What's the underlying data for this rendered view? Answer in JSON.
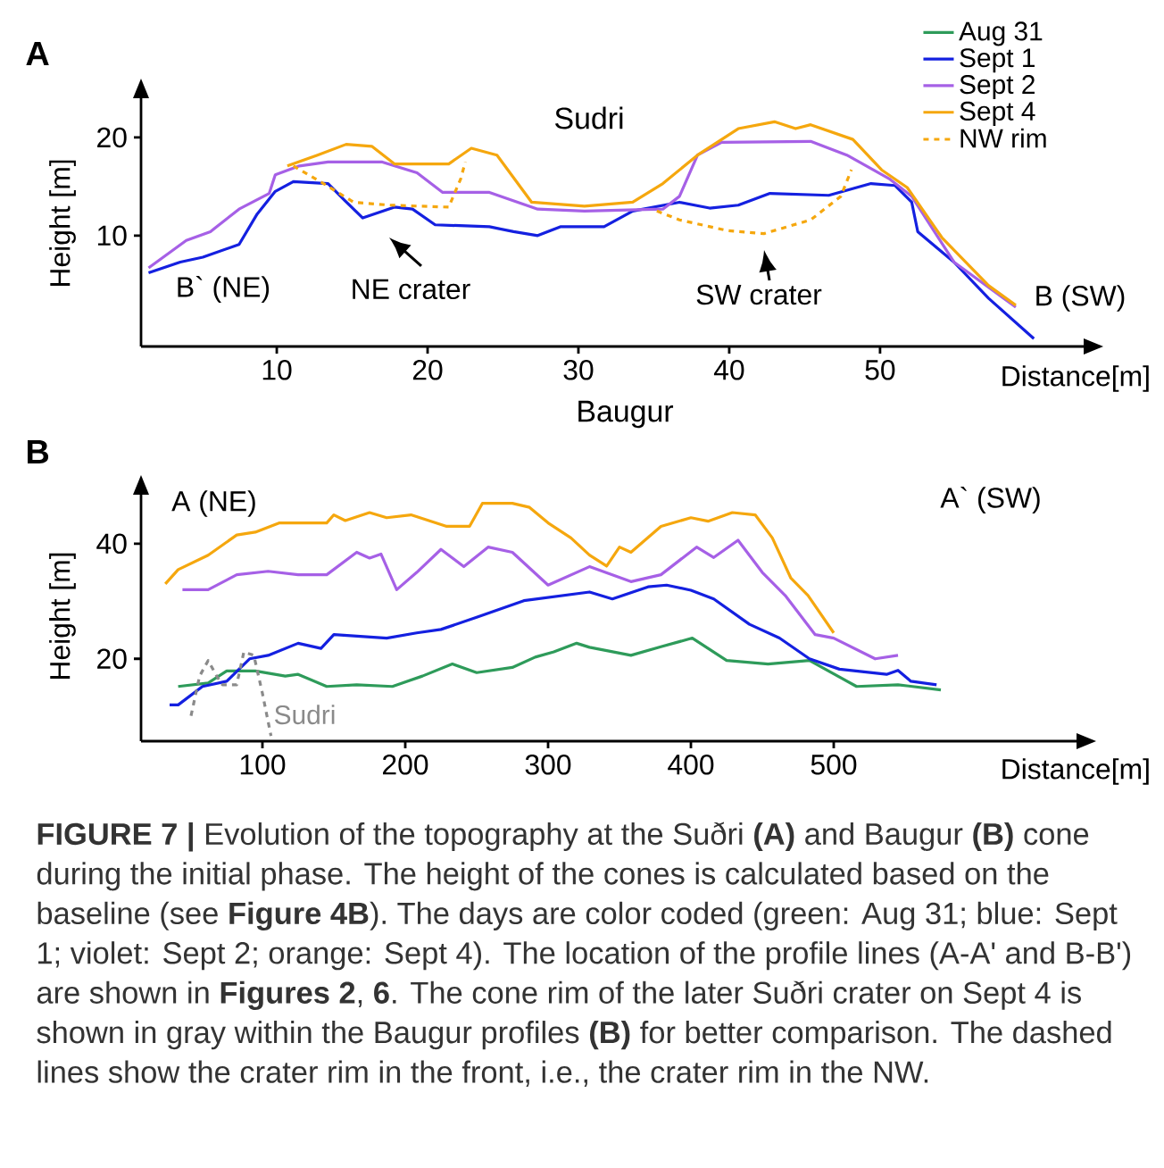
{
  "chart_data": [
    {
      "type": "line",
      "title": "Sudri",
      "xlabel": "Distance[m]",
      "ylabel": "Height [m]",
      "xlim": [
        1,
        63.5
      ],
      "ylim": [
        -1.3,
        24
      ],
      "xticks": [
        10,
        20,
        30,
        40,
        50
      ],
      "yticks": [
        10,
        20
      ],
      "legend": "top right",
      "annotations": [
        "**A**",
        "B` (NE)",
        "NE crater",
        "SW crater",
        "B (SW)"
      ],
      "series": [
        {
          "name": "Aug 31",
          "color": "#2e9b5a"
        },
        {
          "name": "Sept 1",
          "color": "#1420e0",
          "x": [
            1.5,
            3.6,
            5.1,
            7.5,
            8.7,
            9.9,
            11.1,
            13.4,
            14.5,
            15.7,
            17.8,
            19,
            20.5,
            24.1,
            25.7,
            27.3,
            28.8,
            31.7,
            33.6,
            36.7,
            38.7,
            40.6,
            42.7,
            46.6,
            49.4,
            51,
            52.1,
            52.5,
            54.9,
            57.2,
            60.2
          ],
          "values": [
            6.2,
            7.3,
            7.8,
            9.1,
            12.2,
            14.5,
            15.5,
            15.3,
            13.6,
            11.8,
            12.9,
            12.7,
            11.1,
            10.9,
            10.4,
            10,
            10.9,
            10.9,
            12.5,
            13.4,
            12.8,
            13.1,
            14.3,
            14.1,
            15.3,
            15.1,
            13.4,
            10.4,
            7.3,
            3.6,
            -0.5
          ]
        },
        {
          "name": "Sept 2",
          "color": "#a660e6",
          "x": [
            1.5,
            4,
            5.6,
            7.5,
            9.5,
            9.9,
            11.5,
            13.4,
            17,
            19.3,
            21,
            24.1,
            27.3,
            30.4,
            35.6,
            36.7,
            37.9,
            39.5,
            45.4,
            47.8,
            50.6,
            52.1,
            54.9,
            59
          ],
          "values": [
            6.7,
            9.5,
            10.4,
            12.7,
            14.3,
            16.2,
            17.1,
            17.5,
            17.5,
            16.4,
            14.4,
            14.4,
            12.7,
            12.5,
            12.7,
            14,
            18.2,
            19.5,
            19.6,
            18.2,
            15.8,
            14,
            7.3,
            2.7
          ]
        },
        {
          "name": "Sept 4",
          "color": "#f5a70e",
          "x": [
            10.7,
            12.7,
            14.6,
            16.3,
            17.8,
            21.4,
            22.9,
            24.6,
            26.9,
            30.4,
            33.6,
            35.6,
            37.9,
            40.6,
            43,
            44.4,
            45.4,
            48.2,
            50.1,
            51.8,
            54.1,
            57.2,
            59
          ],
          "values": [
            17.1,
            18.2,
            19.3,
            19.1,
            17.3,
            17.3,
            18.9,
            18.2,
            13.4,
            13,
            13.4,
            15.3,
            18.2,
            20.9,
            21.6,
            20.9,
            21.3,
            19.8,
            16.7,
            14.9,
            9.8,
            4.9,
            2.9
          ]
        },
        {
          "name": "NW rim",
          "color": "#f5a70e",
          "line_style": "dashed",
          "x": [
            11.1,
            13.1,
            15.1,
            17.5,
            21.4,
            22.2,
            22.5,
            29,
            35.2,
            36.7,
            39.9,
            42.3,
            45.4,
            47.4,
            48.1
          ],
          "values": [
            17.1,
            15.3,
            13.4,
            13.1,
            12.9,
            15.8,
            17.5,
            null,
            12.5,
            11.6,
            10.5,
            10.2,
            11.6,
            14,
            16.7
          ]
        }
      ]
    },
    {
      "type": "line",
      "title": "Baugur",
      "xlabel": "Distance[m]",
      "ylabel": "Height [m]",
      "xlim": [
        15,
        670
      ],
      "ylim": [
        5.7,
        48.5
      ],
      "xticks": [
        100,
        200,
        300,
        400,
        500
      ],
      "yticks": [
        20,
        40
      ],
      "annotations": [
        "**B**",
        "A (NE)",
        "A` (SW)",
        "**FIGURE 7 |** Evolution of the topography at the Suðri **(A)** and Baugur **(B)** cone during the initial phase. The height of the cones is calculated based on the baseline (see **Figure 4B**). The days are color coded (green: Aug 31; blue: Sept 1; violet: Sept 2; orange: Sept 4). The location of the profile lines (A-A' and B-B') are shown in **Figures 2**, **6**. The cone rim of the later Suðri crater on Sept 4 is shown in gray within the Baugur profiles **(B)** for better comparison. The dashed lines show the crater rim in the front, i.e., the crater rim in the NW."
      ],
      "series": [
        {
          "color": "#2e9b5a",
          "x": [
            41,
            62,
            75,
            95,
            116,
            125,
            145,
            166,
            191,
            212,
            233,
            250,
            275,
            291,
            304,
            320,
            329,
            358,
            379,
            401,
            425,
            454,
            483,
            516,
            545,
            575
          ],
          "values": [
            15.2,
            15.8,
            17.9,
            17.9,
            17,
            17.3,
            15.2,
            15.5,
            15.2,
            17,
            19.1,
            17.6,
            18.5,
            20.3,
            21.2,
            22.7,
            22,
            20.6,
            22.1,
            23.6,
            19.7,
            19.1,
            19.7,
            15.2,
            15.5,
            14.6
          ]
        },
        {
          "color": "#1420e0",
          "x": [
            35,
            41,
            58,
            75,
            91,
            104,
            125,
            141,
            150,
            187,
            208,
            225,
            250,
            283,
            329,
            345,
            370,
            383,
            400,
            416,
            441,
            462,
            483,
            504,
            537,
            545,
            554,
            572
          ],
          "values": [
            12,
            12,
            15.2,
            16.1,
            20,
            20.6,
            22.7,
            21.8,
            24.2,
            23.6,
            24.5,
            25.1,
            27.2,
            30.1,
            31.6,
            30.4,
            32.5,
            32.8,
            31.9,
            30.4,
            26,
            23.6,
            20,
            18.2,
            17.3,
            18,
            16.1,
            15.5
          ]
        },
        {
          "color": "#a660e6",
          "x": [
            44,
            62,
            82,
            104,
            125,
            145,
            166,
            175,
            183,
            194,
            208,
            225,
            241,
            258,
            275,
            300,
            329,
            358,
            379,
            404,
            416,
            433,
            450,
            466,
            487,
            500,
            529,
            545
          ],
          "values": [
            32,
            32,
            34.6,
            35.2,
            34.6,
            34.6,
            38.5,
            37.5,
            38.2,
            32,
            35,
            39,
            36,
            39.4,
            38.5,
            32.8,
            36,
            33.4,
            34.6,
            39.4,
            37.6,
            40.6,
            35,
            31,
            24.2,
            23.6,
            20,
            20.6
          ]
        },
        {
          "color": "#f5a70e",
          "x": [
            32,
            41,
            62,
            82,
            95,
            112,
            145,
            150,
            158,
            175,
            187,
            204,
            229,
            245,
            254,
            275,
            287,
            300,
            316,
            329,
            341,
            350,
            358,
            379,
            400,
            412,
            429,
            445,
            457,
            470,
            482,
            500
          ],
          "values": [
            33,
            35.5,
            38,
            41.5,
            42,
            43.6,
            43.6,
            45,
            44,
            45.4,
            44.5,
            45,
            43,
            43,
            47,
            47,
            46.3,
            43.6,
            41,
            38,
            36.1,
            39.4,
            38.5,
            43,
            44.5,
            43.9,
            45.4,
            45,
            41,
            34,
            31,
            24.5
          ]
        },
        {
          "name": "Sudri",
          "color": "#8a8a8a",
          "line_style": "dashed",
          "x": [
            50,
            56,
            62,
            68,
            72,
            82,
            87,
            94,
            100,
            106
          ],
          "values": [
            10.1,
            17,
            19.7,
            17,
            15.5,
            15.5,
            21.2,
            20.6,
            14,
            6.6
          ]
        }
      ]
    }
  ]
}
